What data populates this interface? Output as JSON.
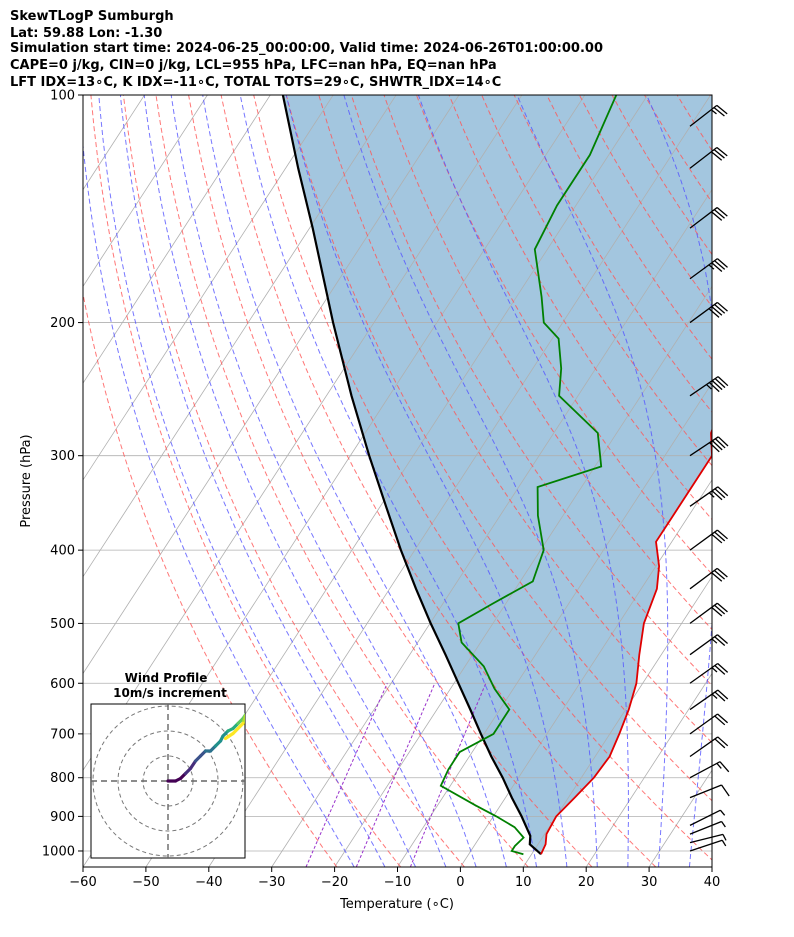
{
  "header": {
    "line1": "SkewTLogP Sumburgh",
    "line2": "Lat: 59.88   Lon: -1.30",
    "line3": "Simulation start time: 2024-06-25_00:00:00, Valid time: 2024-06-26T01:00:00.00",
    "line4": "CAPE=0 j/kg, CIN=0 j/kg, LCL=955 hPa, LFC=nan hPa, EQ=nan hPa",
    "line5": "LFT IDX=13∘C, K IDX=-11∘C, TOTAL TOTS=29∘C, SHWTR_IDX=14∘C"
  },
  "chart_data": {
    "type": "line",
    "subtype": "skew-t log-p diagram",
    "xlabel": "Temperature (∘C)",
    "ylabel": "Pressure (hPa)",
    "x_ticks": [
      -60,
      -50,
      -40,
      -30,
      -20,
      -10,
      0,
      10,
      20,
      30,
      40
    ],
    "y_ticks": [
      100,
      200,
      300,
      400,
      500,
      600,
      700,
      800,
      900,
      1000
    ],
    "xlim": [
      -60,
      40
    ],
    "ylim": [
      1050,
      100
    ],
    "y_scale": "log",
    "colors": {
      "temperature": "#e00000",
      "dewpoint": "#008000",
      "parcel": "#000000",
      "cape_shade": "#a3c6df",
      "dry_adiabat": "#ff5555",
      "moist_adiabat": "#5555ff",
      "mixing_ratio": "#9933cc",
      "isotherm": "#b0b0b0"
    },
    "temperature_profile": [
      [
        1010,
        11.5
      ],
      [
        980,
        11.2
      ],
      [
        950,
        10.3
      ],
      [
        900,
        10.0
      ],
      [
        850,
        11.0
      ],
      [
        800,
        12.0
      ],
      [
        750,
        12.3
      ],
      [
        700,
        11.5
      ],
      [
        650,
        10.5
      ],
      [
        600,
        9.0
      ],
      [
        550,
        6.5
      ],
      [
        500,
        4.0
      ],
      [
        450,
        2.5
      ],
      [
        420,
        0.5
      ],
      [
        390,
        -2.5
      ],
      [
        360,
        -2.5
      ],
      [
        330,
        -2.5
      ],
      [
        300,
        -2.5
      ],
      [
        280,
        -5.0
      ],
      [
        260,
        -6.0
      ],
      [
        240,
        -4.5
      ],
      [
        220,
        -4.5
      ],
      [
        205,
        -3.5
      ],
      [
        190,
        -2.5
      ],
      [
        170,
        -1.0
      ],
      [
        150,
        2.0
      ],
      [
        130,
        4.0
      ],
      [
        115,
        5.0
      ],
      [
        100,
        7.0
      ]
    ],
    "dewpoint_profile": [
      [
        1010,
        8.7
      ],
      [
        1000,
        6.5
      ],
      [
        985,
        6.5
      ],
      [
        960,
        7.0
      ],
      [
        930,
        4.5
      ],
      [
        900,
        0.5
      ],
      [
        870,
        -4.0
      ],
      [
        820,
        -11.5
      ],
      [
        780,
        -12.0
      ],
      [
        740,
        -12.0
      ],
      [
        700,
        -8.5
      ],
      [
        650,
        -8.5
      ],
      [
        610,
        -13.0
      ],
      [
        570,
        -17.0
      ],
      [
        530,
        -23.0
      ],
      [
        500,
        -25.5
      ],
      [
        470,
        -22.0
      ],
      [
        440,
        -18.0
      ],
      [
        400,
        -19.5
      ],
      [
        360,
        -24.0
      ],
      [
        330,
        -27.0
      ],
      [
        310,
        -19.0
      ],
      [
        280,
        -23.0
      ],
      [
        250,
        -33.0
      ],
      [
        230,
        -35.5
      ],
      [
        210,
        -39.0
      ],
      [
        200,
        -43.0
      ],
      [
        185,
        -46.0
      ],
      [
        160,
        -52.0
      ],
      [
        140,
        -53.0
      ],
      [
        120,
        -53.0
      ],
      [
        100,
        -55.0
      ]
    ],
    "parcel_profile": [
      [
        1010,
        11.5
      ],
      [
        980,
        8.7
      ],
      [
        955,
        7.9
      ],
      [
        900,
        4.5
      ],
      [
        850,
        1.0
      ],
      [
        800,
        -2.5
      ],
      [
        750,
        -6.5
      ],
      [
        700,
        -10.5
      ],
      [
        650,
        -14.7
      ],
      [
        600,
        -19.3
      ],
      [
        550,
        -24.3
      ],
      [
        500,
        -29.9
      ],
      [
        450,
        -35.8
      ],
      [
        400,
        -42.2
      ],
      [
        350,
        -49.1
      ],
      [
        300,
        -57.0
      ],
      [
        250,
        -66.0
      ],
      [
        200,
        -76.5
      ],
      [
        150,
        -89.5
      ],
      [
        125,
        -98.0
      ],
      [
        100,
        -108.0
      ]
    ],
    "wind_barbs": [
      {
        "p": 1000,
        "u": -3,
        "v": -1
      },
      {
        "p": 975,
        "u": -4,
        "v": -1
      },
      {
        "p": 950,
        "u": -5,
        "v": -2
      },
      {
        "p": 925,
        "u": -6,
        "v": -3
      },
      {
        "p": 850,
        "u": -10,
        "v": -4
      },
      {
        "p": 800,
        "u": -15,
        "v": -8
      },
      {
        "p": 750,
        "u": -17,
        "v": -12
      },
      {
        "p": 700,
        "u": -18,
        "v": -13
      },
      {
        "p": 650,
        "u": -20,
        "v": -14
      },
      {
        "p": 600,
        "u": -21,
        "v": -15
      },
      {
        "p": 550,
        "u": -22,
        "v": -16
      },
      {
        "p": 500,
        "u": -23,
        "v": -17
      },
      {
        "p": 450,
        "u": -24,
        "v": -18
      },
      {
        "p": 400,
        "u": -26,
        "v": -19
      },
      {
        "p": 350,
        "u": -30,
        "v": -21
      },
      {
        "p": 300,
        "u": -33,
        "v": -22
      },
      {
        "p": 250,
        "u": -38,
        "v": -26
      },
      {
        "p": 200,
        "u": -34,
        "v": -25
      },
      {
        "p": 175,
        "u": -30,
        "v": -22
      },
      {
        "p": 150,
        "u": -25,
        "v": -19
      },
      {
        "p": 125,
        "u": -22,
        "v": -17
      },
      {
        "p": 110,
        "u": -18,
        "v": -14
      }
    ],
    "inset": {
      "title_line1": "Wind Profile",
      "title_line2": "10m/s increment",
      "rings_ms": [
        10,
        20,
        30
      ],
      "hodograph": [
        [
          0,
          0
        ],
        [
          -3,
          0
        ],
        [
          -5,
          -1
        ],
        [
          -7,
          -3
        ],
        [
          -9,
          -5
        ],
        [
          -11,
          -8
        ],
        [
          -13,
          -10
        ],
        [
          -15,
          -12
        ],
        [
          -17,
          -12
        ],
        [
          -19,
          -14
        ],
        [
          -21,
          -16
        ],
        [
          -22,
          -18
        ],
        [
          -24,
          -20
        ],
        [
          -26,
          -21
        ],
        [
          -28,
          -23
        ],
        [
          -30,
          -25
        ],
        [
          -32,
          -28
        ],
        [
          -31,
          -26
        ],
        [
          -30,
          -23
        ],
        [
          -26,
          -19
        ],
        [
          -23,
          -17
        ]
      ]
    }
  }
}
